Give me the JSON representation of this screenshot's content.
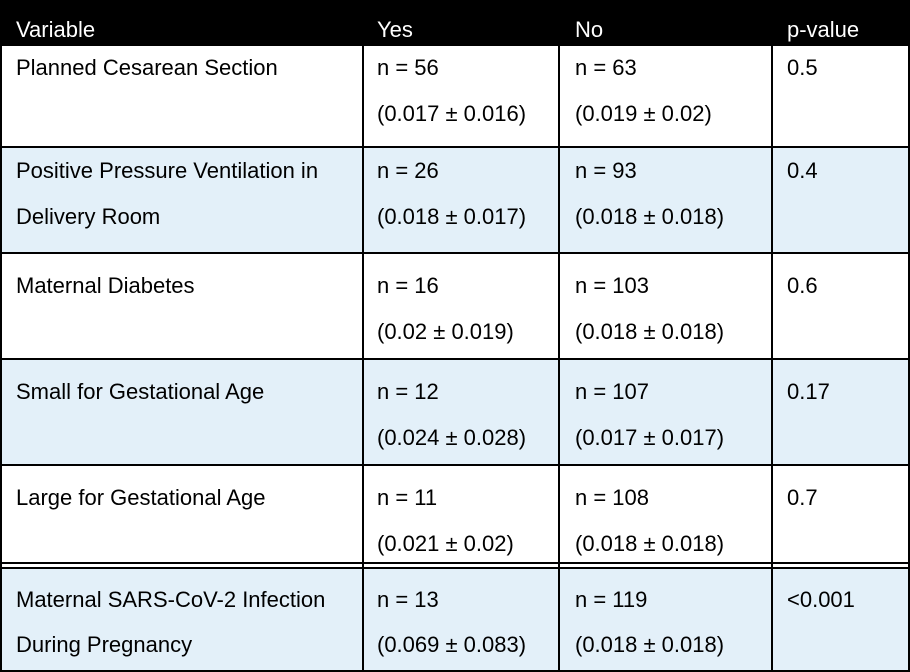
{
  "colors": {
    "header_bg": "#000000",
    "header_text": "#ffffff",
    "row_shade": "#e3f0f9",
    "row_plain": "#ffffff",
    "grid": "#000000"
  },
  "header": {
    "variable": "Variable",
    "yes": "Yes",
    "no": "No",
    "p_value": "p-value"
  },
  "rows": [
    {
      "variable": [
        "Planned Cesarean Section",
        ""
      ],
      "yes": [
        "n = 56",
        "(0.017 ± 0.016)"
      ],
      "no": [
        "n = 63",
        "(0.019 ± 0.02)"
      ],
      "p_value": "0.5"
    },
    {
      "variable": [
        "Positive Pressure Ventilation in",
        "Delivery Room"
      ],
      "yes": [
        "n = 26",
        "(0.018 ± 0.017)"
      ],
      "no": [
        "n = 93",
        "(0.018 ± 0.018)"
      ],
      "p_value": "0.4"
    },
    {
      "variable": [
        "Maternal Diabetes",
        ""
      ],
      "yes": [
        "n = 16",
        "(0.02 ± 0.019)"
      ],
      "no": [
        "n = 103",
        "(0.018 ± 0.018)"
      ],
      "p_value": "0.6"
    },
    {
      "variable": [
        "Small for Gestational Age",
        ""
      ],
      "yes": [
        "n = 12",
        "(0.024 ± 0.028)"
      ],
      "no": [
        "n = 107",
        "(0.017 ± 0.017)"
      ],
      "p_value": "0.17"
    },
    {
      "variable": [
        "Large for Gestational Age",
        ""
      ],
      "yes": [
        "n = 11",
        "(0.021 ± 0.02)"
      ],
      "no": [
        "n = 108",
        "(0.018 ± 0.018)"
      ],
      "p_value": "0.7"
    },
    {
      "variable": [
        "Maternal SARS-CoV-2 Infection",
        "During Pregnancy"
      ],
      "yes": [
        "n = 13",
        "(0.069 ± 0.083)"
      ],
      "no": [
        "n = 119",
        "(0.018 ± 0.018)"
      ],
      "p_value": "<0.001"
    }
  ]
}
